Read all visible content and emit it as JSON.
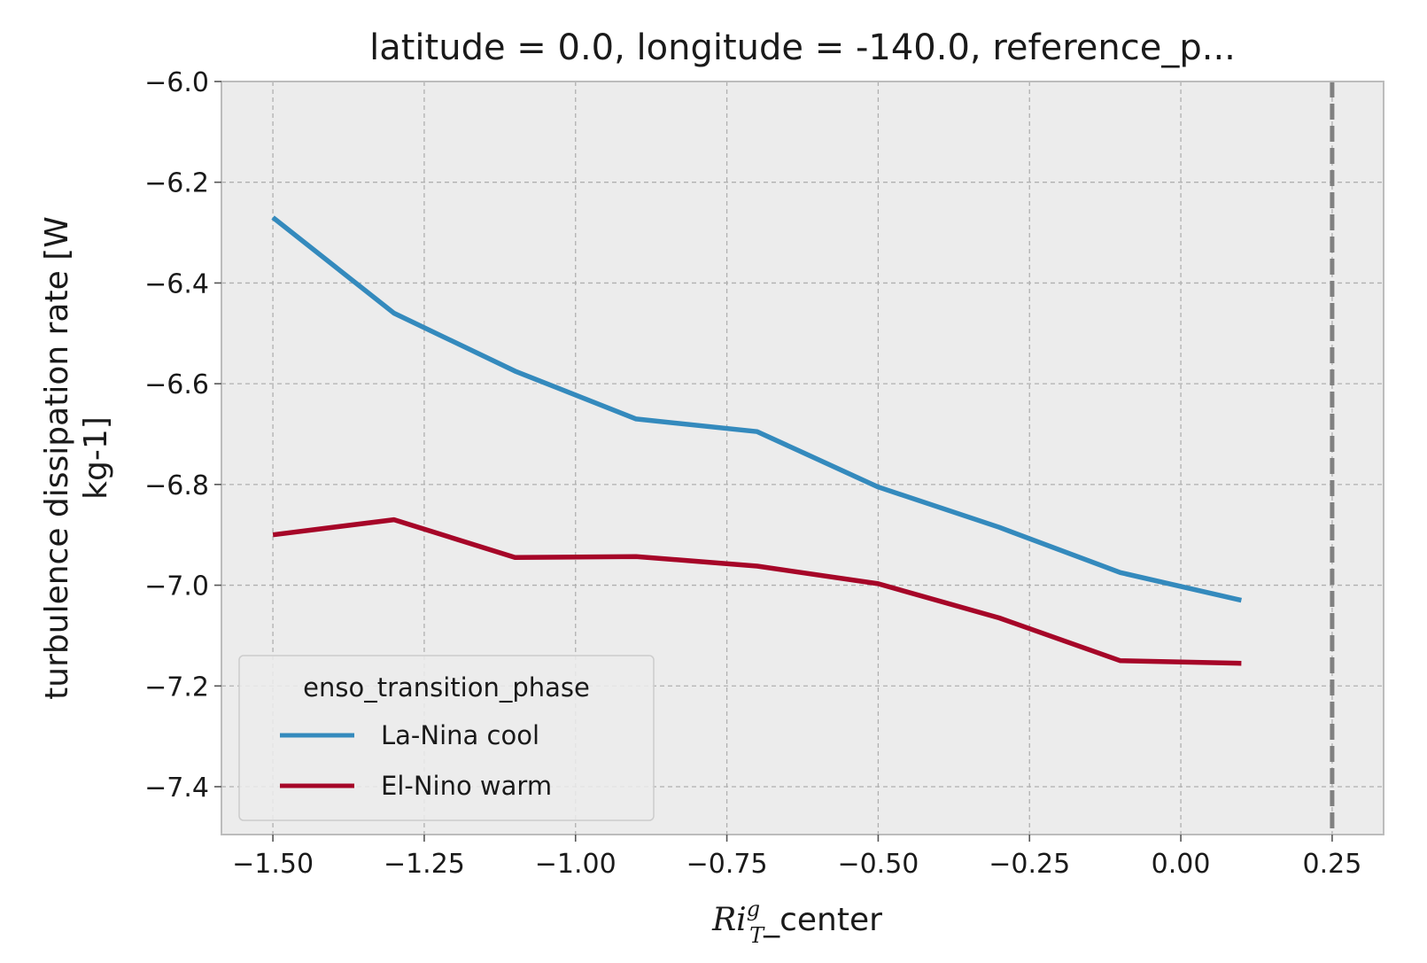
{
  "chart_data": {
    "type": "line",
    "title": "latitude = 0.0, longitude = -140.0, reference_p...",
    "xlabel": {
      "math_base": "Ri",
      "math_sup": "g",
      "math_sub": "T",
      "suffix": "_center"
    },
    "ylabel_lines": [
      "turbulence dissipation rate [W",
      "kg-1]"
    ],
    "x": [
      -1.5,
      -1.3,
      -1.1,
      -0.9,
      -0.7,
      -0.5,
      -0.3,
      -0.1,
      0.1
    ],
    "series": [
      {
        "name": "La-Nina cool",
        "color": "#348abd",
        "values": [
          -6.27,
          -6.46,
          -6.575,
          -6.67,
          -6.695,
          -6.805,
          -6.885,
          -6.975,
          -7.03
        ]
      },
      {
        "name": "El-Nino warm",
        "color": "#a60628",
        "values": [
          -6.9,
          -6.87,
          -6.945,
          -6.943,
          -6.962,
          -6.997,
          -7.065,
          -7.15,
          -7.155
        ]
      }
    ],
    "xlim": [
      -1.585,
      0.335
    ],
    "ylim": [
      -7.495,
      -6.0
    ],
    "xticks": [
      -1.5,
      -1.25,
      -1.0,
      -0.75,
      -0.5,
      -0.25,
      0.0,
      0.25
    ],
    "xtick_labels": [
      "−1.50",
      "−1.25",
      "−1.00",
      "−0.75",
      "−0.50",
      "−0.25",
      "0.00",
      "0.25"
    ],
    "yticks": [
      -6.0,
      -6.2,
      -6.4,
      -6.6,
      -6.8,
      -7.0,
      -7.2,
      -7.4
    ],
    "ytick_labels": [
      "−6.0",
      "−6.2",
      "−6.4",
      "−6.6",
      "−6.8",
      "−7.0",
      "−7.2",
      "−7.4"
    ],
    "reference_line_x": 0.25,
    "grid": true,
    "legend": {
      "title": "enso_transition_phase",
      "placement": "lower-left"
    },
    "colors": {
      "axes_background": "#ececec",
      "grid": "#b0b0b0",
      "spine": "#bcbcbc",
      "reference_line": "#808080"
    }
  }
}
